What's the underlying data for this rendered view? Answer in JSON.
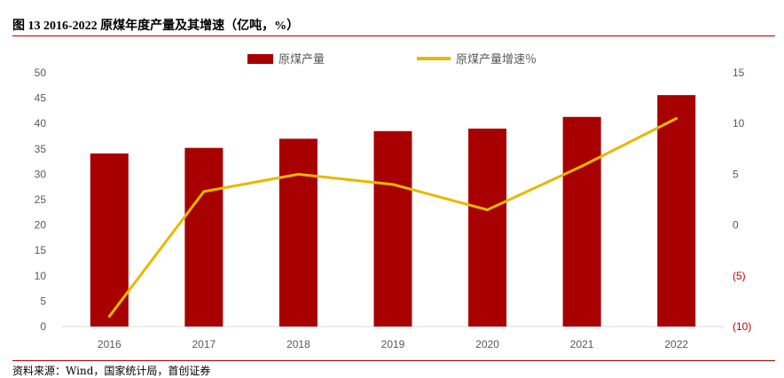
{
  "figure": {
    "title": "图 13 2016-2022 原煤年度产量及其增速（亿吨，%）",
    "source": "资料来源：Wind，国家统计局，首创证券"
  },
  "colors": {
    "bar": "#a80000",
    "line": "#e8b800",
    "rule": "#a80000",
    "tick_text": "#595959",
    "negative_tick_text": "#c00000"
  },
  "chart_data": {
    "type": "bar",
    "categories": [
      "2016",
      "2017",
      "2018",
      "2019",
      "2020",
      "2021",
      "2022"
    ],
    "series": [
      {
        "name": "原煤产量",
        "type": "bar",
        "axis": "left",
        "values": [
          34.1,
          35.2,
          37.0,
          38.5,
          39.0,
          41.3,
          45.6
        ]
      },
      {
        "name": "原煤产量增速％",
        "type": "line",
        "axis": "right",
        "values": [
          -9.0,
          3.3,
          5.0,
          4.0,
          1.5,
          5.8,
          10.5
        ]
      }
    ],
    "y_left": {
      "min": 0,
      "max": 50,
      "ticks": [
        "0",
        "5",
        "10",
        "15",
        "20",
        "25",
        "30",
        "35",
        "40",
        "45",
        "50"
      ]
    },
    "y_right": {
      "min": -10,
      "max": 15,
      "ticks": [
        "(10)",
        "(5)",
        "0",
        "5",
        "10",
        "15"
      ]
    },
    "legend_position": "top",
    "grid": false
  }
}
